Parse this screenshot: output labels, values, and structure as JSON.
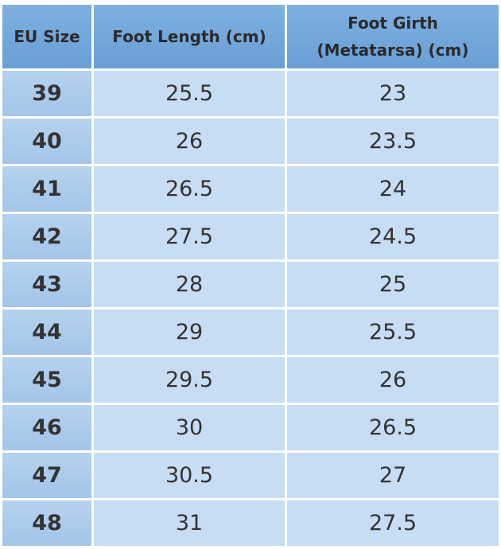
{
  "table": {
    "header": [
      "EU Size",
      "Foot Length (cm)",
      "Foot Girth (Metatarsa) (cm)"
    ],
    "rows": [
      [
        "39",
        "25.5",
        "23"
      ],
      [
        "40",
        "26",
        "23.5"
      ],
      [
        "41",
        "26.5",
        "24"
      ],
      [
        "42",
        "27.5",
        "24.5"
      ],
      [
        "43",
        "28",
        "25"
      ],
      [
        "44",
        "29",
        "25.5"
      ],
      [
        "45",
        "29.5",
        "26"
      ],
      [
        "46",
        "30",
        "26.5"
      ],
      [
        "47",
        "30.5",
        "27"
      ],
      [
        "48",
        "31",
        "27.5"
      ]
    ]
  }
}
